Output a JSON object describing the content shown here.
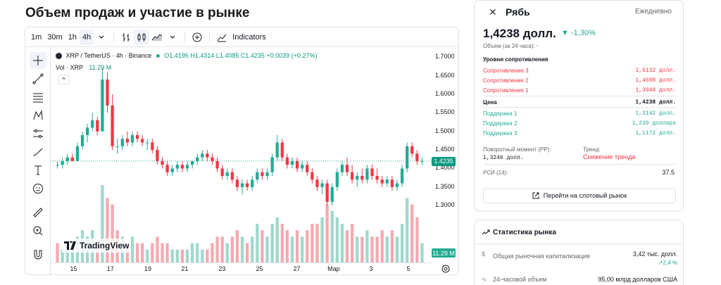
{
  "page": {
    "title": "Объем продаж и участие в рынке"
  },
  "toolbar": {
    "intervals": [
      "1m",
      "30m",
      "1h",
      "4h"
    ],
    "active_interval": "4h",
    "indicators_label": "Indicators"
  },
  "chart": {
    "legend_symbol": "XRP / TetherUS · 4h · Binance",
    "legend_ohlc": "O1.4195 H1.4314 L1.4085 C1.4235 +0.0039 (+0.27%)",
    "vol_label": "Vol · XRP",
    "vol_value": "11.29 M",
    "collapse": "^",
    "last_price": "1.4235",
    "last_vol": "11.29 M",
    "logo": "TradingView",
    "colors": {
      "up": "#22ab94",
      "down": "#f23645",
      "up_vol": "#9fd8cc",
      "down_vol": "#f5a9b0"
    }
  },
  "chart_data": {
    "type": "candlestick",
    "title": "XRP / TetherUS · 4h · Binance",
    "ylim": [
      1.27,
      1.71
    ],
    "price_ticks": [
      "1.7000",
      "1.6500",
      "1.6000",
      "1.5500",
      "1.5000",
      "1.4500",
      "1.4000",
      "1.3500",
      "1.3000"
    ],
    "time_ticks": [
      "15",
      "17",
      "19",
      "21",
      "23",
      "25",
      "27",
      "Мар",
      "3",
      "5"
    ],
    "candles": [
      [
        1.41,
        1.42,
        1.4,
        1.41
      ],
      [
        1.41,
        1.43,
        1.4,
        1.42
      ],
      [
        1.42,
        1.44,
        1.41,
        1.43
      ],
      [
        1.43,
        1.44,
        1.42,
        1.42
      ],
      [
        1.42,
        1.47,
        1.42,
        1.46
      ],
      [
        1.46,
        1.5,
        1.45,
        1.49
      ],
      [
        1.49,
        1.52,
        1.47,
        1.51
      ],
      [
        1.51,
        1.55,
        1.5,
        1.53
      ],
      [
        1.53,
        1.54,
        1.49,
        1.5
      ],
      [
        1.5,
        1.67,
        1.5,
        1.64
      ],
      [
        1.64,
        1.66,
        1.55,
        1.57
      ],
      [
        1.57,
        1.6,
        1.45,
        1.46
      ],
      [
        1.46,
        1.48,
        1.44,
        1.46
      ],
      [
        1.46,
        1.49,
        1.45,
        1.48
      ],
      [
        1.48,
        1.5,
        1.46,
        1.47
      ],
      [
        1.47,
        1.5,
        1.46,
        1.49
      ],
      [
        1.49,
        1.5,
        1.47,
        1.48
      ],
      [
        1.48,
        1.49,
        1.46,
        1.47
      ],
      [
        1.47,
        1.48,
        1.45,
        1.47
      ],
      [
        1.47,
        1.48,
        1.44,
        1.45
      ],
      [
        1.45,
        1.46,
        1.41,
        1.42
      ],
      [
        1.42,
        1.43,
        1.4,
        1.41
      ],
      [
        1.41,
        1.42,
        1.38,
        1.39
      ],
      [
        1.39,
        1.41,
        1.38,
        1.4
      ],
      [
        1.4,
        1.42,
        1.39,
        1.41
      ],
      [
        1.41,
        1.42,
        1.39,
        1.4
      ],
      [
        1.4,
        1.42,
        1.39,
        1.41
      ],
      [
        1.41,
        1.42,
        1.4,
        1.42
      ],
      [
        1.42,
        1.44,
        1.41,
        1.43
      ],
      [
        1.43,
        1.45,
        1.42,
        1.44
      ],
      [
        1.44,
        1.45,
        1.42,
        1.43
      ],
      [
        1.43,
        1.44,
        1.41,
        1.42
      ],
      [
        1.42,
        1.43,
        1.39,
        1.4
      ],
      [
        1.4,
        1.41,
        1.37,
        1.38
      ],
      [
        1.38,
        1.4,
        1.37,
        1.39
      ],
      [
        1.39,
        1.4,
        1.36,
        1.37
      ],
      [
        1.37,
        1.38,
        1.34,
        1.35
      ],
      [
        1.35,
        1.37,
        1.33,
        1.36
      ],
      [
        1.36,
        1.37,
        1.34,
        1.35
      ],
      [
        1.35,
        1.38,
        1.34,
        1.37
      ],
      [
        1.37,
        1.4,
        1.36,
        1.39
      ],
      [
        1.39,
        1.4,
        1.37,
        1.38
      ],
      [
        1.38,
        1.4,
        1.37,
        1.39
      ],
      [
        1.39,
        1.44,
        1.38,
        1.43
      ],
      [
        1.43,
        1.49,
        1.42,
        1.47
      ],
      [
        1.47,
        1.48,
        1.42,
        1.43
      ],
      [
        1.43,
        1.44,
        1.4,
        1.41
      ],
      [
        1.41,
        1.43,
        1.4,
        1.42
      ],
      [
        1.42,
        1.43,
        1.39,
        1.4
      ],
      [
        1.4,
        1.42,
        1.39,
        1.41
      ],
      [
        1.41,
        1.42,
        1.38,
        1.39
      ],
      [
        1.39,
        1.4,
        1.36,
        1.37
      ],
      [
        1.37,
        1.38,
        1.34,
        1.35
      ],
      [
        1.35,
        1.37,
        1.33,
        1.36
      ],
      [
        1.36,
        1.37,
        1.3,
        1.31
      ],
      [
        1.31,
        1.36,
        1.3,
        1.35
      ],
      [
        1.35,
        1.4,
        1.34,
        1.39
      ],
      [
        1.39,
        1.42,
        1.38,
        1.41
      ],
      [
        1.41,
        1.43,
        1.38,
        1.39
      ],
      [
        1.39,
        1.41,
        1.36,
        1.37
      ],
      [
        1.37,
        1.39,
        1.35,
        1.38
      ],
      [
        1.38,
        1.4,
        1.36,
        1.37
      ],
      [
        1.37,
        1.41,
        1.36,
        1.4
      ],
      [
        1.4,
        1.41,
        1.37,
        1.38
      ],
      [
        1.38,
        1.4,
        1.36,
        1.37
      ],
      [
        1.37,
        1.38,
        1.35,
        1.36
      ],
      [
        1.36,
        1.38,
        1.35,
        1.37
      ],
      [
        1.37,
        1.38,
        1.34,
        1.35
      ],
      [
        1.35,
        1.37,
        1.34,
        1.36
      ],
      [
        1.36,
        1.41,
        1.35,
        1.4
      ],
      [
        1.4,
        1.47,
        1.39,
        1.46
      ],
      [
        1.46,
        1.47,
        1.43,
        1.44
      ],
      [
        1.44,
        1.45,
        1.41,
        1.42
      ],
      [
        1.42,
        1.43,
        1.41,
        1.42
      ]
    ],
    "volumes": [
      [
        3,
        0
      ],
      [
        2,
        1
      ],
      [
        3,
        1
      ],
      [
        2,
        1
      ],
      [
        4,
        1
      ],
      [
        5,
        1
      ],
      [
        4,
        1
      ],
      [
        5,
        1
      ],
      [
        3,
        0
      ],
      [
        12,
        1
      ],
      [
        10,
        0
      ],
      [
        9,
        0
      ],
      [
        5,
        0
      ],
      [
        4,
        1
      ],
      [
        3,
        0
      ],
      [
        4,
        1
      ],
      [
        3,
        0
      ],
      [
        3,
        0
      ],
      [
        2,
        1
      ],
      [
        3,
        0
      ],
      [
        4,
        0
      ],
      [
        3,
        0
      ],
      [
        3,
        0
      ],
      [
        2,
        1
      ],
      [
        2,
        1
      ],
      [
        2,
        0
      ],
      [
        2,
        1
      ],
      [
        3,
        1
      ],
      [
        3,
        1
      ],
      [
        2,
        1
      ],
      [
        2,
        0
      ],
      [
        3,
        0
      ],
      [
        4,
        0
      ],
      [
        4,
        0
      ],
      [
        3,
        1
      ],
      [
        4,
        0
      ],
      [
        5,
        0
      ],
      [
        4,
        1
      ],
      [
        3,
        0
      ],
      [
        4,
        1
      ],
      [
        6,
        1
      ],
      [
        5,
        0
      ],
      [
        4,
        1
      ],
      [
        6,
        1
      ],
      [
        7,
        1
      ],
      [
        6,
        0
      ],
      [
        5,
        0
      ],
      [
        4,
        1
      ],
      [
        5,
        0
      ],
      [
        4,
        1
      ],
      [
        5,
        0
      ],
      [
        6,
        0
      ],
      [
        6,
        0
      ],
      [
        7,
        1
      ],
      [
        9,
        0
      ],
      [
        8,
        1
      ],
      [
        7,
        1
      ],
      [
        6,
        1
      ],
      [
        5,
        0
      ],
      [
        6,
        0
      ],
      [
        4,
        1
      ],
      [
        4,
        0
      ],
      [
        5,
        1
      ],
      [
        4,
        0
      ],
      [
        4,
        0
      ],
      [
        5,
        0
      ],
      [
        4,
        1
      ],
      [
        5,
        0
      ],
      [
        4,
        1
      ],
      [
        6,
        1
      ],
      [
        10,
        1
      ],
      [
        9,
        0
      ],
      [
        7,
        0
      ],
      [
        3,
        1
      ]
    ]
  },
  "panel": {
    "close": "✕",
    "name": "Рябь",
    "period": "Ежедневно",
    "price": "1,4238 долл.",
    "change": "▼ -1,30%",
    "volume": "Объем (за 24 часа): -",
    "levels_title": "Уровни сопротивления",
    "resistance": [
      {
        "label": "Сопротивление 3",
        "value": "1,6132 долл."
      },
      {
        "label": "Сопротивление 2",
        "value": "1,4698 долл."
      },
      {
        "label": "Сопротивление 1",
        "value": "1,3948 долл."
      }
    ],
    "price_row": {
      "label": "Цена",
      "value": "1,4238 долл."
    },
    "support": [
      {
        "label": "Поддержка 1",
        "value": "1,3142 долл."
      },
      {
        "label": "Поддержка 2",
        "value": "1,239 доллара"
      },
      {
        "label": "Поддержка 3",
        "value": "1,1172 долл."
      }
    ],
    "pivot_label": "Поворотный момент (PP):",
    "pivot_value": "1,3246 долл.",
    "trend_label": "Тренд:",
    "trend_value": "Снижение тренда",
    "rsi_label": "РСИ (14):",
    "rsi_value": "37.5",
    "spot_button": "Перейти на слотовый рынок"
  },
  "stats": {
    "title": "Статистика рынка",
    "rows": [
      {
        "icon": "$",
        "label": "Общая рыночная капитализация",
        "value": "3,42 тыс. долл.",
        "change": "↗2,4 %"
      },
      {
        "icon": "∿",
        "label": "24-часовой объем",
        "value": "95,00 млрд долларов США",
        "change": ""
      }
    ]
  }
}
